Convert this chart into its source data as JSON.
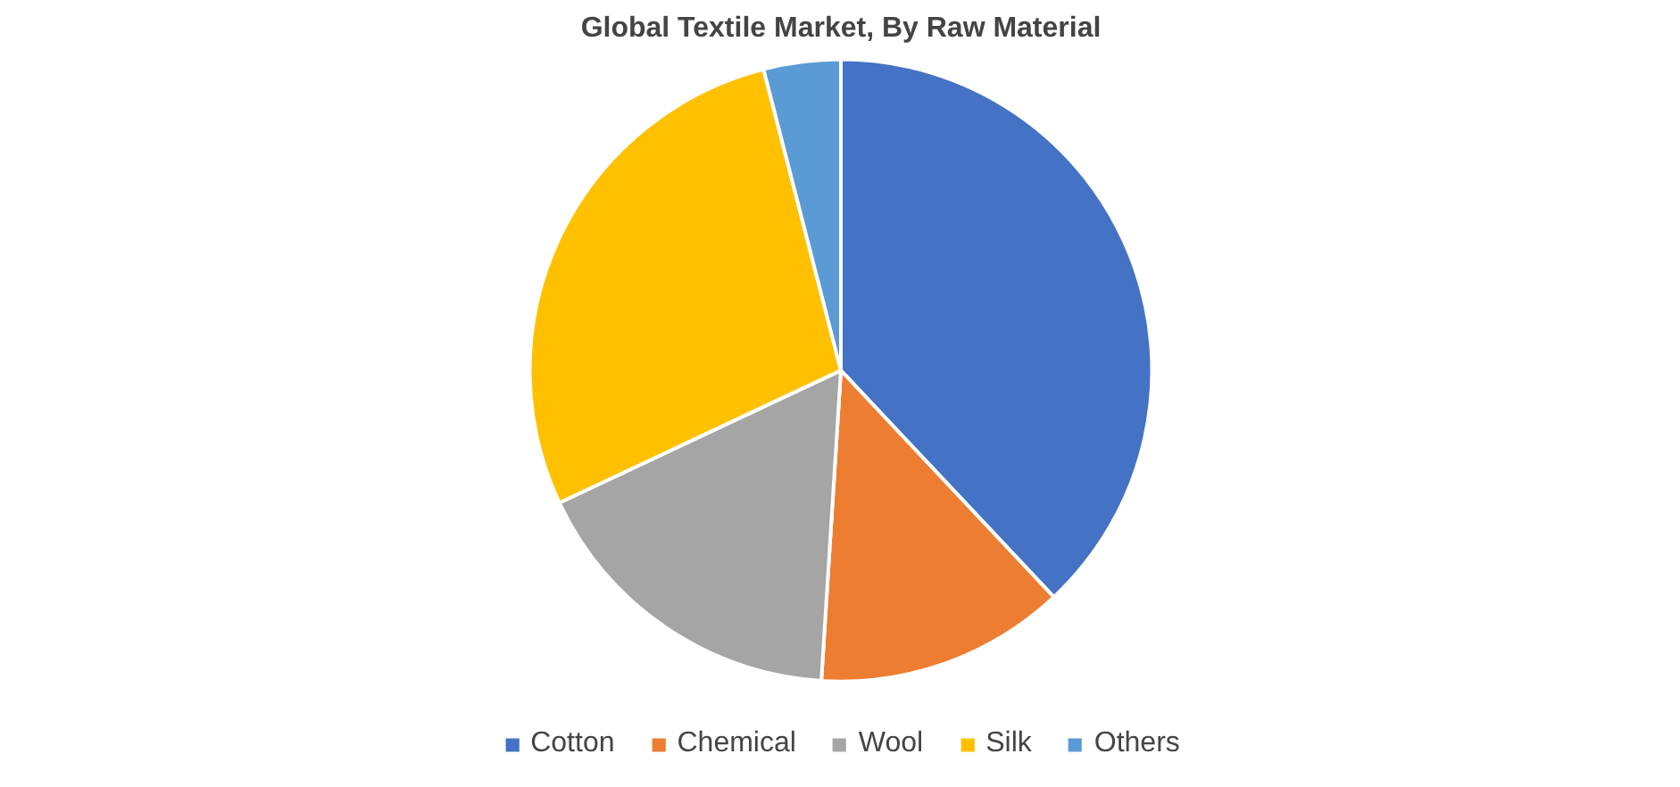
{
  "chart_data": {
    "type": "pie",
    "title": "Global Textile Market, By Raw Material",
    "categories": [
      "Cotton",
      "Chemical",
      "Wool",
      "Silk",
      "Others"
    ],
    "values": [
      38,
      13,
      17,
      28,
      4
    ],
    "colors": [
      "#4472c4",
      "#ed7d31",
      "#a5a5a5",
      "#ffc000",
      "#5b9bd5"
    ],
    "legend": "bottom"
  }
}
